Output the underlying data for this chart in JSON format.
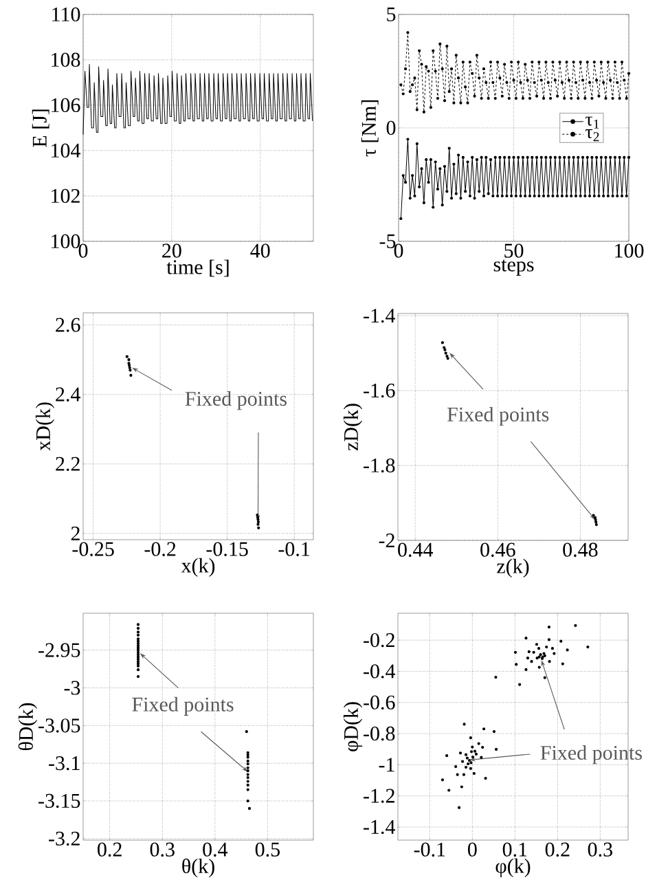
{
  "chart_data": [
    {
      "type": "line",
      "xlabel": "time [s]",
      "ylabel": "E [J]",
      "xlim": [
        0,
        52
      ],
      "ylim": [
        100,
        110
      ],
      "xticks": [
        0,
        20,
        40
      ],
      "yticks": [
        100,
        102,
        104,
        106,
        108,
        110
      ],
      "grid": true,
      "color": "#000000",
      "x": [
        0,
        0.4,
        0.9,
        1.25,
        1.4,
        1.9,
        2.35,
        2.5,
        3.0,
        3.35,
        3.5,
        4.0,
        4.45,
        4.6,
        5.1,
        5.45,
        5.6,
        6.1,
        6.45,
        6.6,
        7.1,
        7.45,
        7.6,
        8.1,
        8.55,
        8.7,
        9.2,
        9.55,
        9.7,
        10.2,
        10.65,
        10.8,
        11.3,
        11.65,
        11.8,
        12.3,
        12.65,
        12.8,
        13.3,
        13.75,
        13.9,
        14.4,
        14.75,
        14.9,
        15.4,
        15.85,
        16.0,
        16.5,
        16.85,
        17.0,
        17.5,
        17.85,
        18.0,
        18.5,
        18.95,
        19.1,
        19.6,
        19.95,
        20.1,
        20.6,
        21.05,
        21.2,
        21.7,
        22.05,
        22.2,
        22.7,
        23.05,
        23.2,
        23.7,
        24.15,
        24.3,
        24.8,
        25.15,
        25.3,
        25.8,
        26.25,
        26.4,
        26.9,
        27.25,
        27.4,
        27.9,
        28.25,
        28.4,
        28.9,
        29.35,
        29.5,
        30.0,
        30.35,
        30.5,
        31.0,
        31.45,
        31.6,
        32.1,
        32.45,
        32.6,
        33.1,
        33.45,
        33.6,
        34.1,
        34.55,
        34.7,
        35.2,
        35.55,
        35.7,
        36.2,
        36.65,
        36.8,
        37.3,
        37.65,
        37.8,
        38.3,
        38.65,
        38.8,
        39.3,
        39.75,
        39.9,
        40.4,
        40.75,
        40.9,
        41.4,
        41.85,
        42.0,
        42.5,
        42.85,
        43.0,
        43.5,
        43.85,
        44.0,
        44.5,
        44.95,
        45.1,
        45.6,
        45.95,
        46.1,
        46.6,
        47.05,
        47.2,
        47.7,
        48.05,
        48.2,
        48.7,
        49.05,
        49.2,
        49.7,
        50.15,
        50.3,
        50.8,
        51.15,
        51.3,
        51.8
      ],
      "values": [
        104.7,
        107.5,
        105.9,
        105.9,
        107.8,
        105.0,
        105.0,
        107.0,
        104.8,
        104.8,
        107.7,
        105.5,
        105.5,
        107.1,
        105.1,
        105.1,
        107.6,
        105.2,
        105.2,
        106.9,
        105.0,
        105.0,
        107.4,
        105.5,
        105.5,
        107.4,
        105.0,
        105.0,
        107.0,
        105.1,
        105.1,
        107.5,
        105.5,
        105.5,
        107.2,
        105.3,
        105.3,
        107.5,
        105.2,
        105.2,
        107.4,
        105.4,
        105.4,
        107.4,
        105.3,
        105.3,
        107.3,
        105.4,
        105.4,
        107.4,
        105.2,
        105.2,
        107.2,
        105.2,
        105.2,
        107.3,
        105.5,
        105.5,
        107.5,
        105.3,
        105.3,
        107.4,
        105.2,
        105.2,
        107.3,
        105.3,
        105.3,
        107.4,
        105.4,
        105.4,
        107.4,
        105.3,
        105.3,
        107.4,
        105.4,
        105.4,
        107.4,
        105.3,
        105.3,
        107.4,
        105.4,
        105.4,
        107.4,
        105.3,
        105.3,
        107.4,
        105.4,
        105.4,
        107.4,
        105.3,
        105.3,
        107.4,
        105.4,
        105.4,
        107.4,
        105.3,
        105.3,
        107.4,
        105.4,
        105.4,
        107.4,
        105.3,
        105.3,
        107.4,
        105.4,
        105.4,
        107.4,
        105.3,
        105.3,
        107.4,
        105.4,
        105.4,
        107.4,
        105.3,
        105.3,
        107.4,
        105.4,
        105.4,
        107.4,
        105.3,
        105.3,
        107.4,
        105.4,
        105.4,
        107.4,
        105.3,
        105.3,
        107.4,
        105.4,
        105.4,
        107.4,
        105.3,
        105.3,
        107.4,
        105.4,
        105.4,
        107.4,
        105.3,
        105.3,
        107.4,
        105.4,
        105.4,
        107.4,
        105.3,
        105.3,
        107.4,
        105.4,
        105.4,
        107.4,
        105.3
      ]
    },
    {
      "type": "line",
      "xlabel": "steps",
      "ylabel": "τ [Nm]",
      "xlim": [
        0,
        100
      ],
      "ylim": [
        -5,
        5
      ],
      "xticks": [
        0,
        50,
        100
      ],
      "yticks": [
        -5,
        0,
        5
      ],
      "grid": true,
      "legend": "right",
      "marker": "circle",
      "x": [
        1,
        2,
        3,
        4,
        5,
        6,
        7,
        8,
        9,
        10,
        11,
        12,
        13,
        14,
        15,
        16,
        17,
        18,
        19,
        20,
        21,
        22,
        23,
        24,
        25,
        26,
        27,
        28,
        29,
        30,
        31,
        32,
        33,
        34,
        35,
        36,
        37,
        38,
        39,
        40,
        41,
        42,
        43,
        44,
        45,
        46,
        47,
        48,
        49,
        50,
        51,
        52,
        53,
        54,
        55,
        56,
        57,
        58,
        59,
        60,
        61,
        62,
        63,
        64,
        65,
        66,
        67,
        68,
        69,
        70,
        71,
        72,
        73,
        74,
        75,
        76,
        77,
        78,
        79,
        80,
        81,
        82,
        83,
        84,
        85,
        86,
        87,
        88,
        89,
        90,
        91,
        92,
        93,
        94,
        95,
        96,
        97,
        98,
        99,
        100
      ],
      "series": [
        {
          "name": "τ$_{1}$",
          "color": "#000000",
          "line_style": "solid",
          "values": [
            -4.0,
            -2.1,
            -2.4,
            -0.5,
            -3.1,
            -2.1,
            -3.0,
            -0.7,
            -2.6,
            -1.8,
            -3.3,
            -1.4,
            -2.4,
            -1.4,
            -3.5,
            -1.5,
            -2.7,
            -1.8,
            -3.4,
            -1.7,
            -2.8,
            -0.9,
            -3.1,
            -1.6,
            -2.9,
            -1.2,
            -3.1,
            -1.3,
            -2.8,
            -1.5,
            -3.0,
            -1.3,
            -3.1,
            -1.4,
            -2.8,
            -1.3,
            -3.0,
            -1.3,
            -2.9,
            -1.4,
            -3.0,
            -1.3,
            -3.0,
            -1.3,
            -3.0,
            -1.3,
            -3.0,
            -1.3,
            -3.0,
            -1.3,
            -3.0,
            -1.3,
            -3.0,
            -1.3,
            -3.0,
            -1.3,
            -3.0,
            -1.3,
            -3.0,
            -1.3,
            -3.0,
            -1.3,
            -3.0,
            -1.3,
            -3.0,
            -1.3,
            -3.0,
            -1.3,
            -3.0,
            -1.3,
            -3.0,
            -1.3,
            -3.0,
            -1.3,
            -3.0,
            -1.3,
            -3.0,
            -1.3,
            -3.0,
            -1.3,
            -3.0,
            -1.3,
            -3.0,
            -1.3,
            -3.0,
            -1.3,
            -3.0,
            -1.3,
            -3.0,
            -1.3,
            -3.0,
            -1.3,
            -3.0,
            -1.3,
            -3.0,
            -1.3,
            -3.0,
            -1.3,
            -3.0,
            -1.3
          ]
        },
        {
          "name": "τ$_{2}$",
          "color": "#000000",
          "line_style": "dashed",
          "values": [
            1.9,
            1.5,
            2.6,
            4.2,
            1.6,
            1.9,
            2.2,
            0.8,
            3.4,
            2.8,
            0.7,
            2.7,
            2.5,
            0.9,
            3.4,
            2.5,
            1.3,
            3.7,
            2.6,
            1.2,
            3.6,
            1.6,
            2.6,
            1.1,
            3.2,
            2.2,
            1.1,
            2.9,
            1.8,
            1.1,
            2.9,
            2.4,
            1.4,
            3.2,
            2.2,
            1.3,
            2.6,
            2.0,
            1.3,
            2.9,
            2.0,
            1.3,
            2.9,
            2.2,
            1.4,
            2.8,
            2.0,
            1.3,
            2.9,
            2.1,
            1.3,
            2.9,
            2.0,
            1.3,
            2.8,
            2.1,
            1.3,
            2.9,
            2.0,
            1.4,
            2.9,
            2.1,
            1.3,
            2.9,
            2.0,
            1.3,
            2.9,
            2.1,
            1.4,
            2.9,
            2.0,
            1.3,
            2.9,
            2.1,
            1.3,
            2.9,
            2.0,
            1.3,
            2.9,
            2.1,
            1.3,
            2.9,
            2.0,
            1.3,
            2.9,
            2.1,
            1.4,
            2.9,
            2.0,
            1.3,
            2.9,
            2.1,
            1.3,
            2.9,
            2.0,
            1.3,
            2.9,
            2.1,
            1.3,
            2.4
          ]
        }
      ]
    },
    {
      "type": "scatter",
      "xlabel": "x(k)",
      "ylabel": "xD(k)",
      "xlim": [
        -0.2575,
        -0.0857
      ],
      "ylim": [
        1.982,
        2.635
      ],
      "xticks": [
        -0.25,
        -0.2,
        -0.15,
        -0.1
      ],
      "yticks": [
        2,
        2.2,
        2.4,
        2.6
      ],
      "grid": true,
      "marker": "circle",
      "annotations": [
        {
          "text": "Fixed points",
          "x": -0.221,
          "y": 2.477
        }
      ],
      "series": [
        {
          "color": "#000000",
          "x": [
            -0.2248,
            -0.2234,
            -0.2234,
            -0.2231,
            -0.2228,
            -0.2224,
            -0.2219
          ],
          "values": [
            2.509,
            2.5,
            2.49,
            2.484,
            2.477,
            2.47,
            2.455
          ]
        },
        {
          "color": "#000000",
          "x": [
            -0.1275,
            -0.1272,
            -0.127,
            -0.1268,
            -0.127,
            -0.1266
          ],
          "values": [
            2.053,
            2.046,
            2.04,
            2.033,
            2.026,
            2.016
          ]
        }
      ]
    },
    {
      "type": "scatter",
      "xlabel": "z(k)",
      "ylabel": "zD(k)",
      "xlim": [
        0.4358,
        0.4916
      ],
      "ylim": [
        -2.0,
        -1.394
      ],
      "xticks": [
        0.44,
        0.46,
        0.48
      ],
      "yticks": [
        -2,
        -1.8,
        -1.6,
        -1.4
      ],
      "grid": true,
      "marker": "circle",
      "annotations": [
        {
          "text": "Fixed points",
          "x": 0.4483,
          "y": -1.499
        }
      ],
      "series": [
        {
          "color": "#000000",
          "x": [
            0.4466,
            0.447,
            0.4472,
            0.4474,
            0.4477,
            0.4479
          ],
          "values": [
            -1.472,
            -1.485,
            -1.491,
            -1.5,
            -1.508,
            -1.514
          ]
        },
        {
          "color": "#000000",
          "x": [
            0.4832,
            0.4836,
            0.4837,
            0.4838,
            0.4839
          ],
          "values": [
            -1.933,
            -1.939,
            -1.945,
            -1.951,
            -1.958
          ]
        }
      ]
    },
    {
      "type": "scatter",
      "xlabel": "θ(k)",
      "ylabel": "θD(k)",
      "xlim": [
        0.1495,
        0.587
      ],
      "ylim": [
        -3.202,
        -2.901
      ],
      "xticks": [
        0.2,
        0.3,
        0.4,
        0.5
      ],
      "yticks": [
        -3.2,
        -3.15,
        -3.1,
        -3.05,
        -3,
        -2.95
      ],
      "grid": true,
      "marker": "circle",
      "annotations": [
        {
          "text": "Fixed points",
          "x": 0.2575,
          "y": -2.954
        }
      ],
      "series": [
        {
          "color": "#000000",
          "x": [
            0.254,
            0.254,
            0.254,
            0.254,
            0.254,
            0.254,
            0.254,
            0.254,
            0.254,
            0.254,
            0.254,
            0.254,
            0.254,
            0.254,
            0.254,
            0.254,
            0.254,
            0.254,
            0.254
          ],
          "values": [
            -2.916,
            -2.921,
            -2.926,
            -2.93,
            -2.935,
            -2.938,
            -2.941,
            -2.944,
            -2.947,
            -2.95,
            -2.953,
            -2.956,
            -2.959,
            -2.962,
            -2.965,
            -2.968,
            -2.971,
            -2.976,
            -2.985
          ]
        },
        {
          "color": "#000000",
          "x": [
            0.46,
            0.4625,
            0.4625,
            0.4625,
            0.4625,
            0.4625,
            0.4625,
            0.4625,
            0.4625,
            0.4625,
            0.4625,
            0.4625,
            0.4625,
            0.4625,
            0.4655
          ],
          "values": [
            -3.058,
            -3.086,
            -3.089,
            -3.092,
            -3.097,
            -3.101,
            -3.106,
            -3.11,
            -3.115,
            -3.119,
            -3.124,
            -3.129,
            -3.135,
            -3.15,
            -3.16
          ]
        }
      ]
    },
    {
      "type": "scatter",
      "xlabel": "φ(k)",
      "ylabel": "φD(k)",
      "xlim": [
        -0.1747,
        0.3656
      ],
      "ylim": [
        -1.484,
        -0.0273
      ],
      "xticks": [
        -0.1,
        0,
        0.1,
        0.2,
        0.3
      ],
      "yticks": [
        -1.4,
        -1.2,
        -1,
        -0.8,
        -0.6,
        -0.4,
        -0.2
      ],
      "grid": true,
      "marker": "circle",
      "annotations": [
        {
          "text": "Fixed points",
          "x": 0.162,
          "y": -0.328
        }
      ],
      "series": [
        {
          "color": "#000000",
          "x": [
            0.18,
            0.242,
            0.126,
            0.18,
            0.208,
            0.271,
            0.223,
            0.151,
            0.156,
            0.174,
            0.133,
            0.144,
            0.188,
            0.192,
            0.101,
            0.13,
            0.139,
            0.152,
            0.181,
            0.157,
            0.212,
            0.103,
            0.126,
            0.17,
            0.055,
            0.111,
            0.16,
            0.165,
            0.168,
            0.157,
            0.164,
            0.17
          ],
          "values": [
            -0.116,
            -0.106,
            -0.187,
            -0.197,
            -0.207,
            -0.244,
            -0.263,
            -0.227,
            -0.253,
            -0.244,
            -0.274,
            -0.278,
            -0.253,
            -0.286,
            -0.278,
            -0.315,
            -0.337,
            -0.315,
            -0.337,
            -0.374,
            -0.352,
            -0.356,
            -0.389,
            -0.441,
            -0.438,
            -0.485,
            -0.293,
            -0.308,
            -0.286,
            -0.308,
            -0.318,
            -0.3
          ]
        },
        {
          "color": "#000000",
          "x": [
            -0.019,
            0.027,
            0.051,
            -0.004,
            0.015,
            0.024,
            0.0,
            0.056,
            -0.028,
            -0.06,
            -0.002,
            0.006,
            -0.015,
            0.009,
            0.021,
            -0.023,
            -0.039,
            -0.015,
            -0.004,
            -0.035,
            -0.02,
            0.004,
            0.031,
            -0.07,
            -0.025,
            -0.055,
            -0.031,
            -0.007,
            -0.012,
            -0.003,
            0.001,
            -0.01
          ],
          "values": [
            -0.74,
            -0.77,
            -0.787,
            -0.827,
            -0.864,
            -0.888,
            -0.886,
            -0.901,
            -0.925,
            -0.942,
            -0.916,
            -0.913,
            -0.935,
            -0.932,
            -0.953,
            -0.979,
            -1.012,
            -1.016,
            -1.024,
            -1.063,
            -1.063,
            -1.056,
            -1.087,
            -1.097,
            -1.142,
            -1.164,
            -1.275,
            -0.972,
            -0.957,
            -0.987,
            -0.95,
            -0.994
          ]
        }
      ]
    }
  ]
}
